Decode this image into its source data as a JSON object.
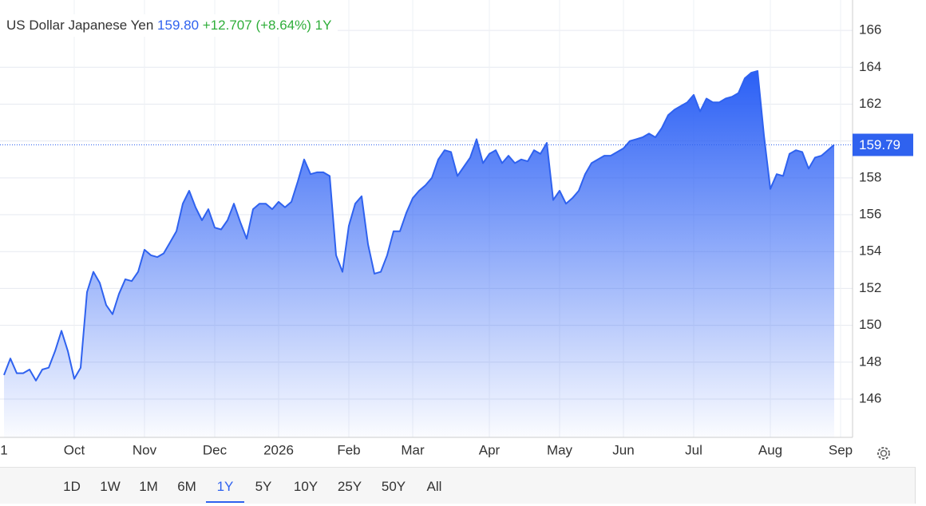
{
  "chart_data": {
    "type": "area",
    "title": "US Dollar Japanese Yen",
    "price": "159.80",
    "change": "+12.707",
    "change_pct": "(+8.64%)",
    "period": "1Y",
    "categories": [
      "1",
      null,
      null,
      null,
      null,
      null,
      null,
      null,
      null,
      null,
      null,
      "Oct",
      null,
      null,
      null,
      null,
      null,
      null,
      null,
      null,
      null,
      null,
      "Nov",
      null,
      null,
      null,
      null,
      null,
      null,
      null,
      null,
      null,
      null,
      "Dec",
      null,
      null,
      null,
      null,
      null,
      null,
      null,
      null,
      null,
      "2026",
      null,
      null,
      null,
      null,
      null,
      null,
      null,
      null,
      null,
      null,
      "Feb",
      null,
      null,
      null,
      null,
      null,
      null,
      null,
      null,
      null,
      "Mar",
      null,
      null,
      null,
      null,
      null,
      null,
      null,
      null,
      null,
      null,
      null,
      "Apr",
      null,
      null,
      null,
      null,
      null,
      null,
      null,
      null,
      null,
      null,
      "May",
      null,
      null,
      null,
      null,
      null,
      null,
      null,
      null,
      null,
      "Jun",
      null,
      null,
      null,
      null,
      null,
      null,
      null,
      null,
      null,
      null,
      "Jul",
      null,
      null,
      null,
      null,
      null,
      null,
      null,
      null,
      null,
      null,
      null,
      "Aug",
      null,
      null,
      null,
      null,
      null,
      null,
      null,
      null,
      null,
      null,
      "Sep"
    ],
    "series": [
      {
        "color": "#2f62ef",
        "values": [
          147.3,
          148.2,
          147.4,
          147.4,
          147.6,
          147.0,
          147.6,
          147.7,
          148.6,
          149.7,
          148.6,
          147.1,
          147.7,
          151.8,
          152.9,
          152.3,
          151.1,
          150.6,
          151.7,
          152.5,
          152.4,
          152.9,
          154.1,
          153.8,
          153.7,
          153.9,
          154.5,
          155.1,
          156.6,
          157.3,
          156.4,
          155.7,
          156.3,
          155.3,
          155.2,
          155.7,
          156.6,
          155.6,
          154.7,
          156.3,
          156.6,
          156.6,
          156.3,
          156.7,
          156.4,
          156.7,
          157.8,
          159.0,
          158.2,
          158.3,
          158.3,
          158.1,
          153.8,
          152.9,
          155.4,
          156.6,
          157.0,
          154.4,
          152.8,
          152.9,
          153.8,
          155.1,
          155.1,
          156.1,
          156.9,
          157.3,
          157.6,
          158.0,
          159.0,
          159.5,
          159.4,
          158.1,
          158.6,
          159.1,
          160.1,
          158.8,
          159.3,
          159.5,
          158.8,
          159.2,
          158.8,
          159.0,
          158.9,
          159.5,
          159.3,
          159.9,
          156.8,
          157.3,
          156.6,
          156.9,
          157.3,
          158.2,
          158.8,
          159.0,
          159.2,
          159.2,
          159.4,
          159.6,
          160.0,
          160.1,
          160.2,
          160.4,
          160.2,
          160.7,
          161.4,
          161.7,
          161.9,
          162.1,
          162.5,
          161.6,
          162.3,
          162.1,
          162.1,
          162.3,
          162.4,
          162.6,
          163.4,
          163.7,
          163.8,
          160.3,
          157.4,
          158.2,
          158.1,
          159.3,
          159.5,
          159.4,
          158.5,
          159.1,
          159.2,
          159.5,
          159.8,
          null
        ]
      }
    ],
    "last_value": {
      "value": 159.79,
      "label": "159.79"
    },
    "ylim": [
      143.92,
      167.65
    ],
    "yticks": [
      146,
      148,
      150,
      152,
      154,
      156,
      158,
      160,
      162,
      164,
      166
    ],
    "grid": true,
    "range_buttons": [
      "1D",
      "1W",
      "1M",
      "6M",
      "1Y",
      "5Y",
      "10Y",
      "25Y",
      "50Y",
      "All"
    ],
    "active_range": "1Y"
  }
}
